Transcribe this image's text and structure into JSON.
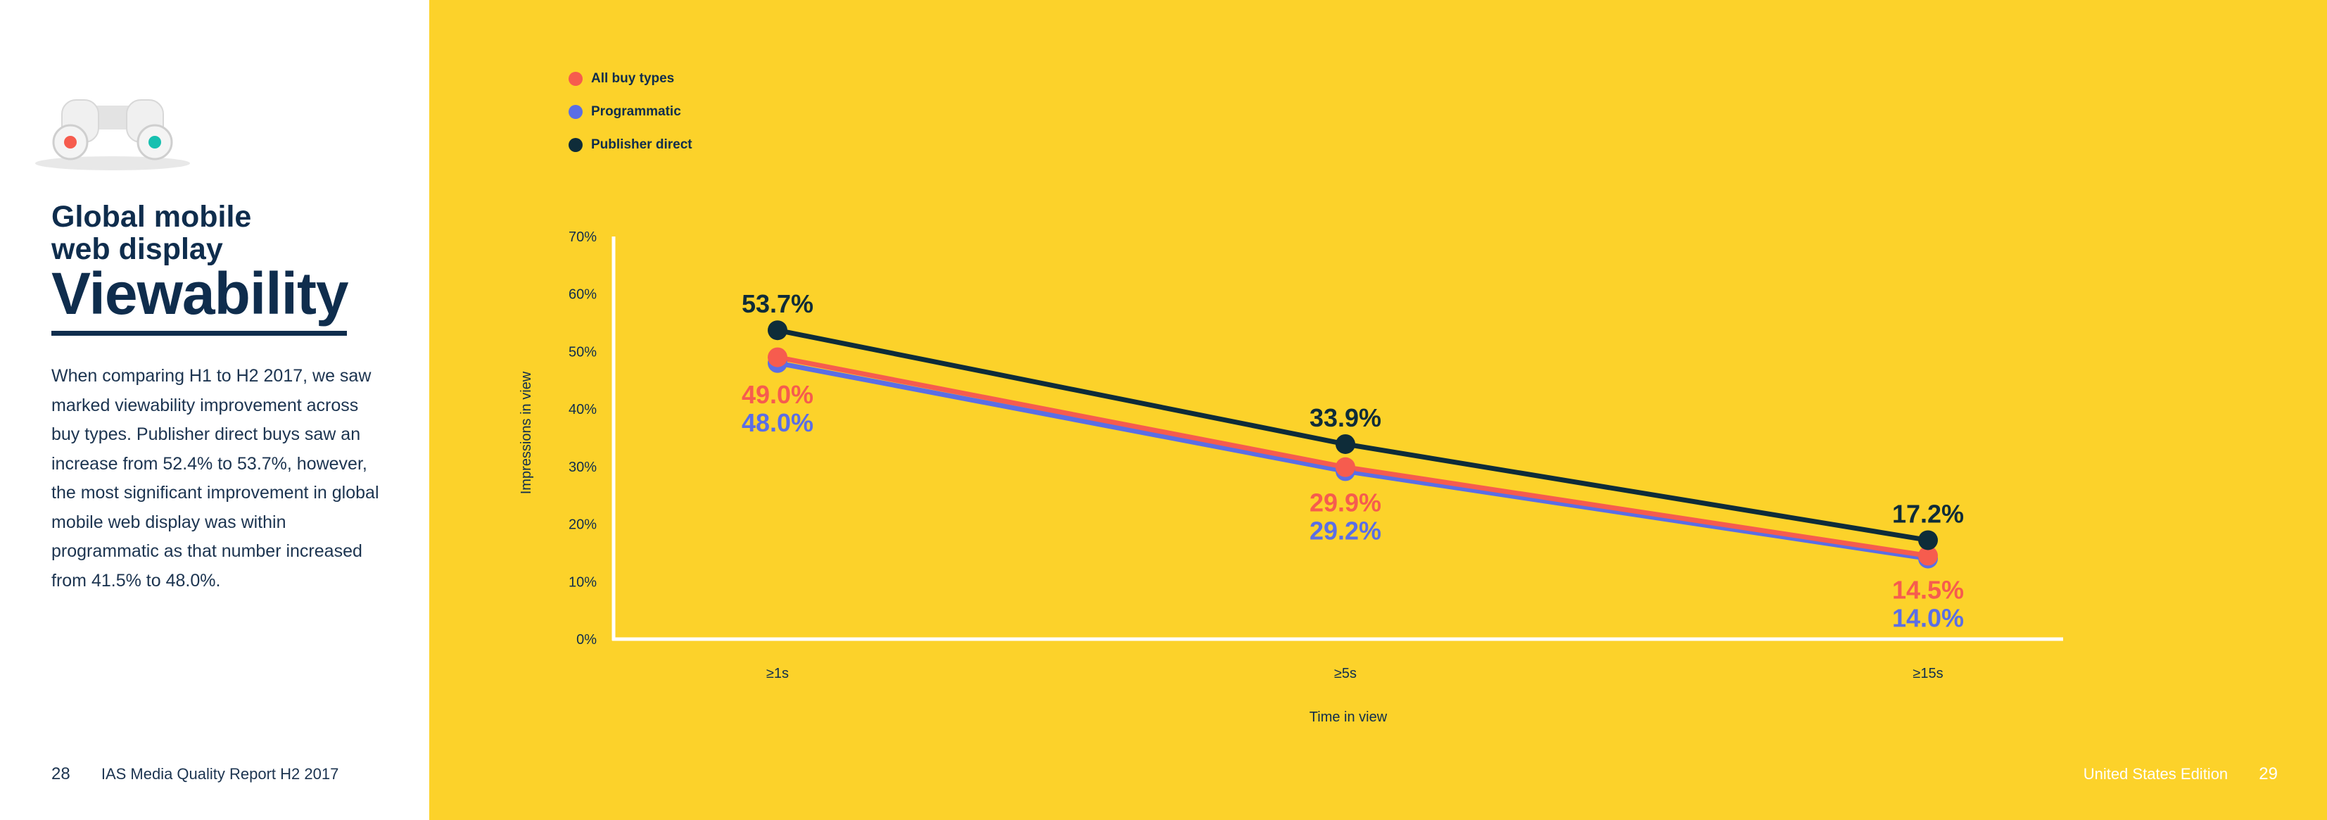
{
  "sidebar": {
    "title_line1": "Global mobile",
    "title_line2": "web display",
    "title_big": "Viewability",
    "body": "When comparing H1 to H2 2017, we saw marked viewability improvement across buy types. Publisher direct buys saw an increase from 52.4% to 53.7%, however, the most significant improvement in global mobile web display was within programmatic as that number increased from 41.5% to 48.0%.",
    "footer_page": "28",
    "footer_title": "IAS Media Quality Report H2 2017"
  },
  "footer_right": {
    "edition": "United States Edition",
    "page": "29"
  },
  "colors": {
    "background": "#fcd22a",
    "all_buy_types": "#f65c4e",
    "programmatic": "#5b6ee5",
    "publisher_direct": "#0e2c39",
    "axis": "#ffffff"
  },
  "chart_data": {
    "type": "line",
    "title": "Global mobile web display Viewability",
    "xlabel": "Time in view",
    "ylabel": "Impressions in view",
    "categories": [
      "≥1s",
      "≥5s",
      "≥15s"
    ],
    "ylim": [
      0,
      70
    ],
    "yticks": [
      "0%",
      "10%",
      "20%",
      "30%",
      "40%",
      "50%",
      "60%",
      "70%"
    ],
    "legend_position": "top-left",
    "series": [
      {
        "name": "All buy types",
        "values": [
          49.0,
          29.9,
          14.5
        ],
        "labels": [
          "49.0%",
          "29.9%",
          "14.5%"
        ]
      },
      {
        "name": "Programmatic",
        "values": [
          48.0,
          29.2,
          14.0
        ],
        "labels": [
          "48.0%",
          "29.2%",
          "14.0%"
        ]
      },
      {
        "name": "Publisher direct",
        "values": [
          53.7,
          33.9,
          17.2
        ],
        "labels": [
          "53.7%",
          "33.9%",
          "17.2%"
        ]
      }
    ]
  }
}
